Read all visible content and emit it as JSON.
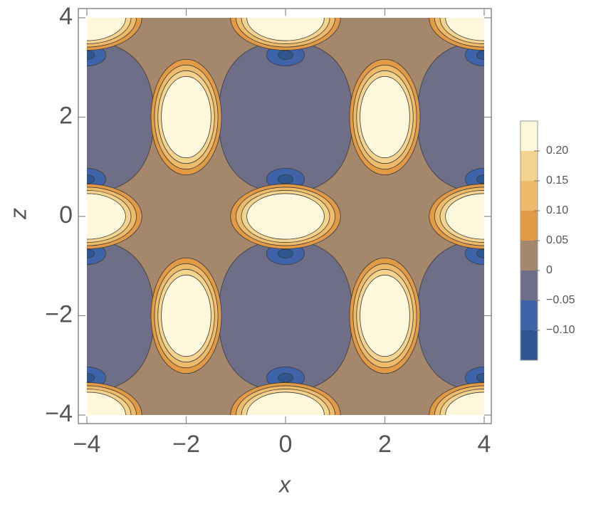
{
  "chart_data": {
    "type": "contour",
    "xlabel": "x",
    "ylabel": "z",
    "xlim": [
      -4,
      4
    ],
    "ylim": [
      -4,
      4
    ],
    "xticks": [
      {
        "value": -4,
        "label": "−4"
      },
      {
        "value": -2,
        "label": "−2"
      },
      0,
      2,
      4
    ],
    "yticks": [
      {
        "value": -4,
        "label": "−4"
      },
      {
        "value": -2,
        "label": "−2"
      },
      0,
      2,
      4
    ],
    "levels": [
      -0.15,
      -0.1,
      -0.05,
      0,
      0.05,
      0.1,
      0.15,
      0.2,
      0.25
    ],
    "colors": [
      "#2f5690",
      "#3f63a9",
      "#6e6e88",
      "#a5876b",
      "#e39a46",
      "#eebb6b",
      "#f4d38f",
      "#fdf8dc"
    ],
    "colorbar_ticks": [
      {
        "value": -0.1,
        "label": "−0.10"
      },
      {
        "value": -0.05,
        "label": "−0.05"
      },
      0,
      {
        "value": 0.05,
        "label": "0.05"
      },
      {
        "value": 0.1,
        "label": "0.10"
      },
      {
        "value": 0.15,
        "label": "0.15"
      },
      {
        "value": 0.2,
        "label": "0.20"
      }
    ],
    "features": [
      {
        "x": 0,
        "z": 2,
        "value": -0.04
      },
      {
        "x": 0,
        "z": -2,
        "value": -0.04
      },
      {
        "x": -4,
        "z": 2,
        "value": -0.04
      },
      {
        "x": 4,
        "z": 2,
        "value": -0.04
      },
      {
        "x": -4,
        "z": -2,
        "value": -0.04
      },
      {
        "x": 4,
        "z": -2,
        "value": -0.04
      },
      {
        "x": 0,
        "z": 0.75,
        "value": -0.11
      },
      {
        "x": 0,
        "z": -0.75,
        "value": -0.11
      },
      {
        "x": 0,
        "z": 3.25,
        "value": -0.11
      },
      {
        "x": 0,
        "z": -3.25,
        "value": -0.11
      },
      {
        "x": -4,
        "z": 0.75,
        "value": -0.11
      },
      {
        "x": 4,
        "z": 0.75,
        "value": -0.11
      },
      {
        "x": -4,
        "z": -0.75,
        "value": -0.11
      },
      {
        "x": 4,
        "z": -0.75,
        "value": -0.11
      },
      {
        "x": -4,
        "z": 3.25,
        "value": -0.11
      },
      {
        "x": 4,
        "z": 3.25,
        "value": -0.11
      },
      {
        "x": -4,
        "z": -3.25,
        "value": -0.11
      },
      {
        "x": 4,
        "z": -3.25,
        "value": -0.11
      },
      {
        "x": -4,
        "z": 4,
        "value": 0.25
      },
      {
        "x": 0,
        "z": 4,
        "value": 0.25
      },
      {
        "x": 4,
        "z": 4,
        "value": 0.25
      },
      {
        "x": -4,
        "z": 0,
        "value": 0.25
      },
      {
        "x": 0,
        "z": 0,
        "value": 0.25
      },
      {
        "x": 4,
        "z": 0,
        "value": 0.25
      },
      {
        "x": -4,
        "z": -4,
        "value": 0.25
      },
      {
        "x": 0,
        "z": -4,
        "value": 0.25
      },
      {
        "x": 4,
        "z": -4,
        "value": 0.25
      },
      {
        "x": -2,
        "z": 2,
        "value": 0.25
      },
      {
        "x": 2,
        "z": 2,
        "value": 0.25
      },
      {
        "x": -2,
        "z": -2,
        "value": 0.25
      },
      {
        "x": 2,
        "z": -2,
        "value": 0.25
      }
    ]
  }
}
